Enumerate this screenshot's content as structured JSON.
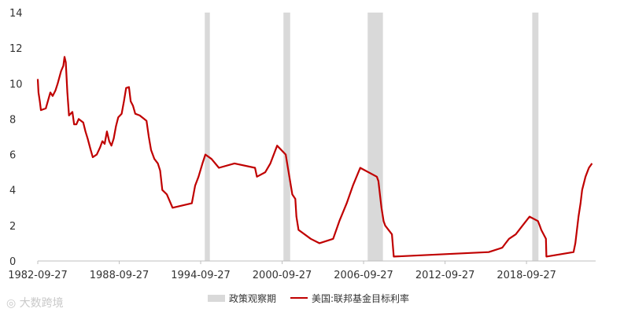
{
  "chart_data": {
    "type": "line",
    "title": "",
    "xlabel": "",
    "ylabel": "",
    "ylim": [
      0,
      14
    ],
    "yticks": [
      0,
      2,
      4,
      6,
      8,
      10,
      12,
      14
    ],
    "xlim": [
      "1982-09-27",
      "2023-11-01"
    ],
    "xtick_labels": [
      "1982-09-27",
      "1988-09-27",
      "1994-09-27",
      "2000-09-27",
      "2006-09-27",
      "2012-09-27",
      "2018-09-27"
    ],
    "grid": false,
    "legend": "bottom",
    "shaded_series_name": "政策观察期",
    "shaded_periods": [
      [
        "1995-01-15",
        "1995-06-01"
      ],
      [
        "2000-11-01",
        "2001-05-01"
      ],
      [
        "2007-01-15",
        "2008-03-01"
      ],
      [
        "2019-03-01",
        "2019-08-15"
      ]
    ],
    "series": [
      {
        "name": "美国:联邦基金目标利率",
        "color": "#c00000",
        "points": [
          [
            "1982-09-27",
            10.25
          ],
          [
            "1982-10-15",
            9.5
          ],
          [
            "1982-11-20",
            9.0
          ],
          [
            "1982-12-20",
            8.5
          ],
          [
            "1983-05-01",
            8.6
          ],
          [
            "1983-09-01",
            9.5
          ],
          [
            "1983-11-01",
            9.3
          ],
          [
            "1984-01-15",
            9.6
          ],
          [
            "1984-03-15",
            10.0
          ],
          [
            "1984-06-15",
            10.7
          ],
          [
            "1984-08-15",
            11.0
          ],
          [
            "1984-09-15",
            11.5
          ],
          [
            "1984-10-20",
            11.2
          ],
          [
            "1984-12-01",
            9.5
          ],
          [
            "1985-01-15",
            8.2
          ],
          [
            "1985-04-15",
            8.4
          ],
          [
            "1985-06-01",
            7.7
          ],
          [
            "1985-08-01",
            7.7
          ],
          [
            "1985-10-01",
            8.0
          ],
          [
            "1986-02-01",
            7.8
          ],
          [
            "1986-04-01",
            7.3
          ],
          [
            "1986-06-01",
            6.9
          ],
          [
            "1986-08-15",
            6.3
          ],
          [
            "1986-10-15",
            5.85
          ],
          [
            "1987-02-01",
            6.0
          ],
          [
            "1987-05-01",
            6.4
          ],
          [
            "1987-07-01",
            6.75
          ],
          [
            "1987-09-01",
            6.6
          ],
          [
            "1987-11-01",
            7.3
          ],
          [
            "1988-01-01",
            6.75
          ],
          [
            "1988-03-01",
            6.5
          ],
          [
            "1988-05-01",
            6.9
          ],
          [
            "1988-07-01",
            7.6
          ],
          [
            "1988-09-01",
            8.1
          ],
          [
            "1988-12-01",
            8.3
          ],
          [
            "1989-02-01",
            9.0
          ],
          [
            "1989-04-01",
            9.75
          ],
          [
            "1989-06-15",
            9.8
          ],
          [
            "1989-08-01",
            9.0
          ],
          [
            "1989-10-01",
            8.75
          ],
          [
            "1989-12-01",
            8.3
          ],
          [
            "1990-04-01",
            8.2
          ],
          [
            "1990-08-01",
            8.0
          ],
          [
            "1990-10-01",
            7.9
          ],
          [
            "1990-12-01",
            7.0
          ],
          [
            "1991-02-01",
            6.25
          ],
          [
            "1991-05-01",
            5.75
          ],
          [
            "1991-08-01",
            5.5
          ],
          [
            "1991-10-01",
            5.1
          ],
          [
            "1991-12-01",
            4.0
          ],
          [
            "1992-04-01",
            3.75
          ],
          [
            "1992-09-01",
            3.0
          ],
          [
            "1994-02-01",
            3.25
          ],
          [
            "1994-05-01",
            4.25
          ],
          [
            "1994-08-01",
            4.75
          ],
          [
            "1994-11-15",
            5.5
          ],
          [
            "1995-02-01",
            6.0
          ],
          [
            "1995-07-15",
            5.75
          ],
          [
            "1996-01-31",
            5.25
          ],
          [
            "1997-03-25",
            5.5
          ],
          [
            "1998-09-29",
            5.25
          ],
          [
            "1998-11-17",
            4.75
          ],
          [
            "1999-06-30",
            5.0
          ],
          [
            "1999-11-16",
            5.5
          ],
          [
            "2000-05-16",
            6.5
          ],
          [
            "2000-12-31",
            6.0
          ],
          [
            "2001-03-20",
            5.0
          ],
          [
            "2001-06-27",
            3.75
          ],
          [
            "2001-09-17",
            3.5
          ],
          [
            "2001-10-15",
            2.5
          ],
          [
            "2001-12-11",
            1.75
          ],
          [
            "2002-11-06",
            1.25
          ],
          [
            "2003-06-25",
            1.0
          ],
          [
            "2004-06-30",
            1.25
          ],
          [
            "2004-12-14",
            2.25
          ],
          [
            "2005-06-30",
            3.25
          ],
          [
            "2005-12-13",
            4.25
          ],
          [
            "2006-06-29",
            5.25
          ],
          [
            "2007-09-18",
            4.75
          ],
          [
            "2007-10-31",
            4.5
          ],
          [
            "2008-01-22",
            3.0
          ],
          [
            "2008-03-18",
            2.25
          ],
          [
            "2008-04-30",
            2.0
          ],
          [
            "2008-10-29",
            1.5
          ],
          [
            "2008-12-16",
            0.25
          ],
          [
            "2015-12-16",
            0.5
          ],
          [
            "2016-12-14",
            0.75
          ],
          [
            "2017-03-15",
            1.0
          ],
          [
            "2017-06-14",
            1.25
          ],
          [
            "2017-12-13",
            1.5
          ],
          [
            "2018-06-13",
            2.0
          ],
          [
            "2018-12-19",
            2.5
          ],
          [
            "2019-07-31",
            2.25
          ],
          [
            "2019-09-18",
            2.0
          ],
          [
            "2019-10-30",
            1.75
          ],
          [
            "2020-03-03",
            1.25
          ],
          [
            "2020-03-15",
            0.25
          ],
          [
            "2022-03-16",
            0.5
          ],
          [
            "2022-05-04",
            1.0
          ],
          [
            "2022-06-15",
            1.75
          ],
          [
            "2022-07-27",
            2.5
          ],
          [
            "2022-09-21",
            3.25
          ],
          [
            "2022-11-02",
            4.0
          ],
          [
            "2023-02-01",
            4.75
          ],
          [
            "2023-05-03",
            5.25
          ],
          [
            "2023-07-26",
            5.5
          ]
        ]
      }
    ]
  },
  "legend": {
    "shaded_label": "政策观察期",
    "line_label": "美国:联邦基金目标利率"
  },
  "watermark": {
    "text": "大数跨境"
  }
}
